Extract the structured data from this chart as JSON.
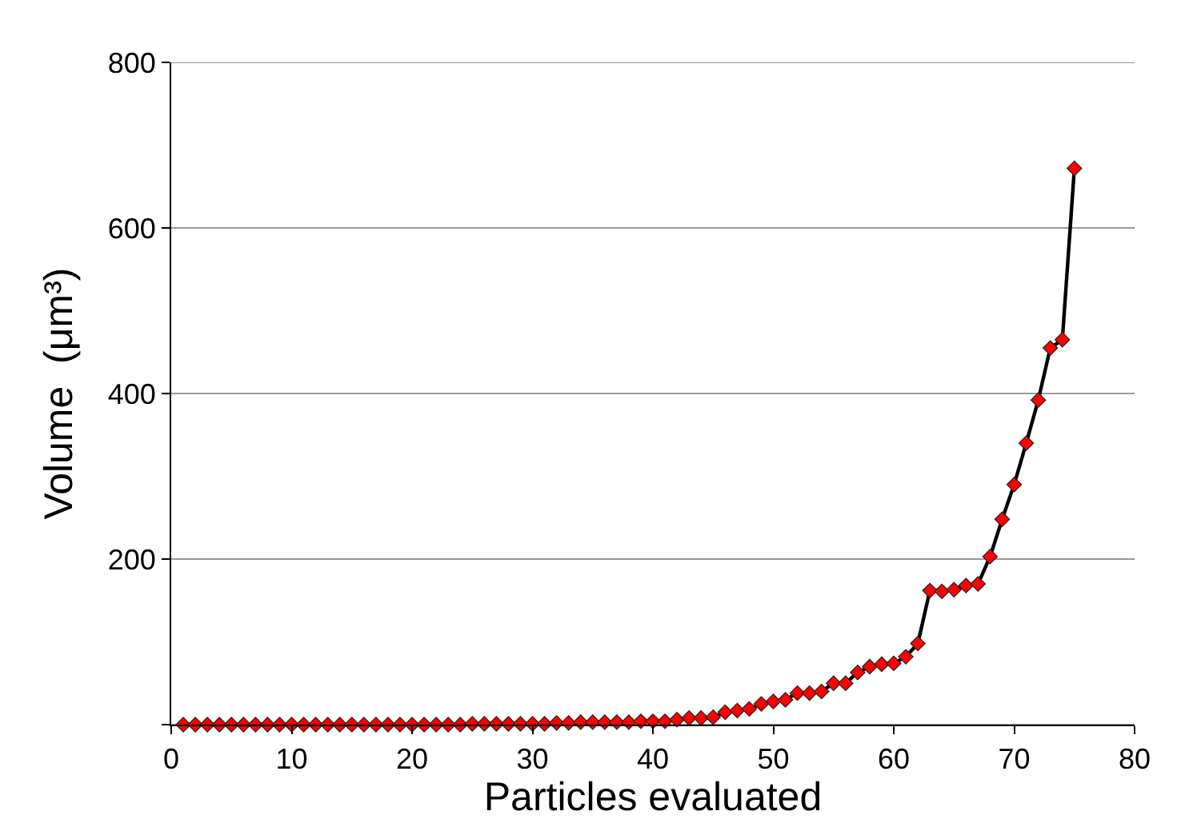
{
  "chart_data": {
    "type": "line",
    "xlabel": "Particles evaluated",
    "ylabel": "Volume  (μm³)",
    "x": [
      1,
      2,
      3,
      4,
      5,
      6,
      7,
      8,
      9,
      10,
      11,
      12,
      13,
      14,
      15,
      16,
      17,
      18,
      19,
      20,
      21,
      22,
      23,
      24,
      25,
      26,
      27,
      28,
      29,
      30,
      31,
      32,
      33,
      34,
      35,
      36,
      37,
      38,
      39,
      40,
      41,
      42,
      43,
      44,
      45,
      46,
      47,
      48,
      49,
      50,
      51,
      52,
      53,
      54,
      55,
      56,
      57,
      58,
      59,
      60,
      61,
      62,
      63,
      64,
      65,
      66,
      67,
      68,
      69,
      70,
      71,
      72,
      73,
      74,
      75
    ],
    "series": [
      {
        "color": "#ff0000",
        "values": [
          0,
          0,
          0,
          0,
          0,
          0,
          0,
          0,
          0,
          0,
          0,
          0,
          0,
          0,
          0,
          0,
          0,
          0,
          0,
          0,
          0,
          0,
          0,
          0,
          1,
          1,
          1,
          1,
          1,
          1,
          1,
          2,
          2,
          3,
          3,
          3,
          3,
          3,
          4,
          4,
          4,
          6,
          8,
          8,
          9,
          15,
          17,
          19,
          25,
          28,
          30,
          38,
          38,
          40,
          50,
          50,
          63,
          70,
          73,
          74,
          82,
          98,
          162,
          161,
          163,
          168,
          170,
          203,
          248,
          290,
          340,
          392,
          455,
          465,
          672
        ]
      }
    ],
    "xlim": [
      0,
      80
    ],
    "xticks": [
      0,
      10,
      20,
      30,
      40,
      50,
      60,
      70,
      80
    ],
    "ylim": [
      0,
      800
    ],
    "yticks": [
      {
        "value": 0,
        "label": null
      },
      200,
      400,
      600,
      800
    ],
    "grid": "y",
    "marker": "diamond",
    "line_style": "solid"
  }
}
